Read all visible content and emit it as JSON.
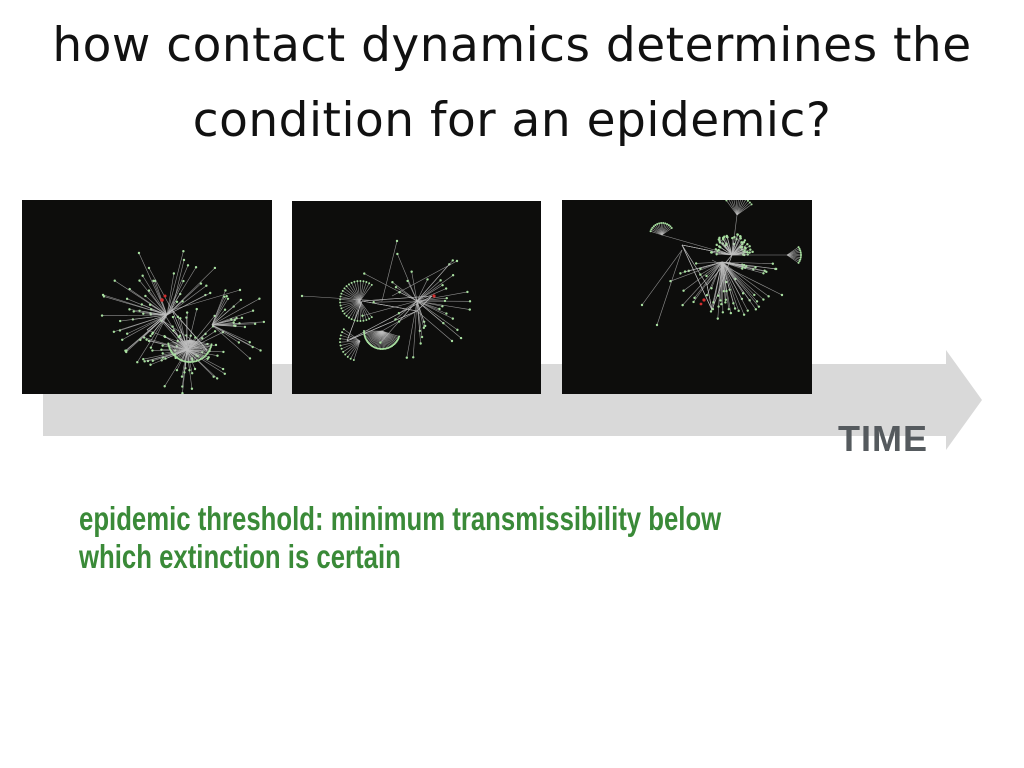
{
  "slide": {
    "title": "how contact dynamics determines the condition for an epidemic?",
    "title_line1": "how contact dynamics determines the",
    "title_line2": "condition for an epidemic?"
  },
  "timeline": {
    "label": "TIME",
    "arrow_color": "#d9d9d9",
    "label_color": "#555a5e"
  },
  "snapshots": [
    {
      "name": "network-snapshot-1"
    },
    {
      "name": "network-snapshot-2"
    },
    {
      "name": "network-snapshot-3"
    }
  ],
  "colors": {
    "snapshot_bg": "#0d0d0c",
    "edge": "#bfbfbf",
    "node_healthy": "#a8e0a0",
    "node_infected": "#d23030",
    "definition_text": "#3a8a38"
  },
  "definition": {
    "text": "epidemic threshold: minimum transmissibility below which extinction is certain",
    "line1": "epidemic threshold: minimum transmissibility below",
    "line2": "which extinction is certain"
  }
}
